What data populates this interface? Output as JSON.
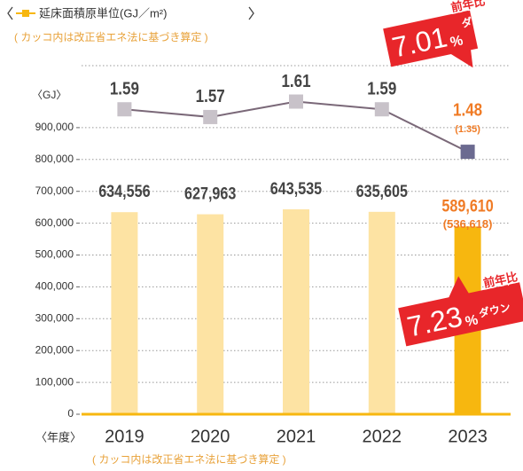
{
  "chart_data": {
    "type": "bar_line",
    "subtitle": "( カッコ内は改正省エネ法に基づき算定 )",
    "footnote": "( カッコ内は改正省エネ法に基づき算定 )",
    "ylabel": "〈GJ〉",
    "xlabel": "〈年度〉",
    "categories": [
      "2019",
      "2020",
      "2021",
      "2022",
      "2023"
    ],
    "series": [
      {
        "type": "bar",
        "colors": [
          "#fde3a3",
          "#fde3a3",
          "#fde3a3",
          "#fde3a3",
          "#f7b70f"
        ],
        "values": [
          634556,
          627963,
          643535,
          635605,
          589610
        ],
        "value_labels": [
          "634,556",
          "627,963",
          "643,535",
          "635,605",
          "589,610"
        ]
      },
      {
        "type": "line",
        "name": "延床面積原単位(GJ／m²)",
        "axis": "y2",
        "color": "#7a6878",
        "marker_colors": [
          "#c8c2c9",
          "#c8c2c9",
          "#c8c2c9",
          "#c8c2c9",
          "#6b6a90"
        ],
        "values": [
          1.59,
          1.57,
          1.61,
          1.59,
          1.48
        ]
      }
    ],
    "highlight_color": "#f07b25",
    "bar_note": "(536,618)",
    "line_note": "(1.35)",
    "ylim": [
      0,
      1000000
    ],
    "yticks": [
      0,
      {
        "value": 100000,
        "label": "100,000"
      },
      {
        "value": 200000,
        "label": "200,000"
      },
      {
        "value": 300000,
        "label": "300,000"
      },
      {
        "value": 400000,
        "label": "400,000"
      },
      {
        "value": 500000,
        "label": "500,000"
      },
      {
        "value": 600000,
        "label": "600,000"
      },
      {
        "value": 700000,
        "label": "700,000"
      },
      {
        "value": 800000,
        "label": "800,000"
      },
      {
        "value": 900000,
        "label": "900,000"
      }
    ],
    "y2lim": [
      0.8,
      1.625
    ],
    "grid": true,
    "callouts": [
      {
        "lead": "前年比",
        "figure": "7.01",
        "unit": "%",
        "tail": "ダウン"
      },
      {
        "lead": "前年比",
        "figure": "7.23",
        "unit": "%",
        "tail": "ダウン"
      }
    ]
  }
}
